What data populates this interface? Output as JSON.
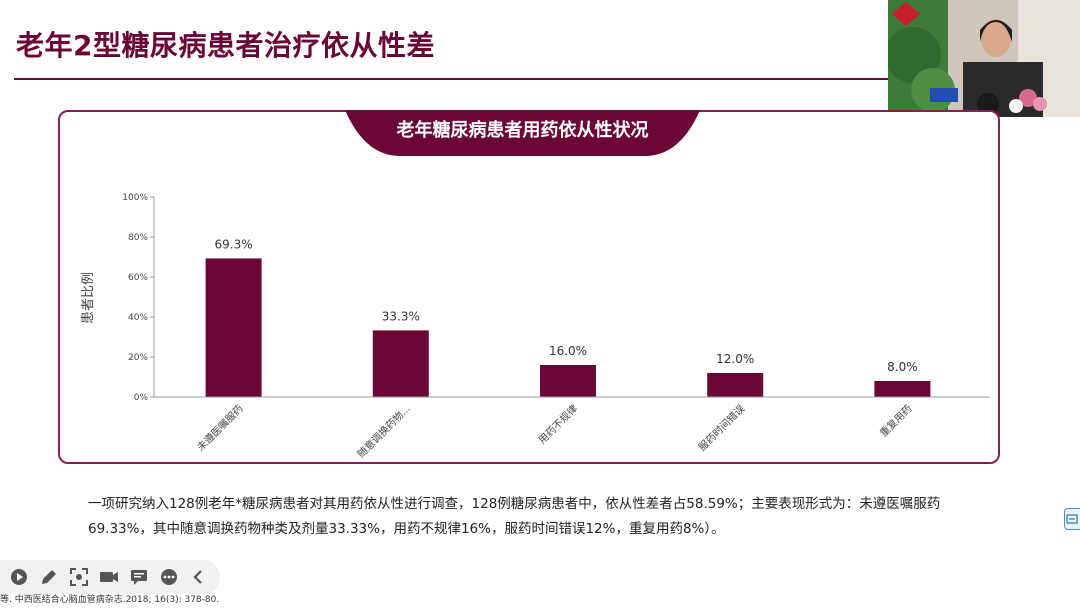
{
  "slide": {
    "title": "老年2型糖尿病患者治疗依从性差",
    "chart_banner": "老年糖尿病患者用药依从性状况",
    "description": "一项研究纳入128例老年*糖尿病患者对其用药依从性进行调查，128例糖尿病患者中，依从性差者占58.59%；主要表现形式为：未遵医嘱服药69.33%，其中随意调换药物种类及剂量33.33%，用药不规律16%，服药时间错误12%，重复用药8%）。",
    "citation": "等. 中西医结合心脑血管病杂志.2018; 16(3): 378-80."
  },
  "colors": {
    "accent": "#6b0637",
    "bar": "#6b0637",
    "panel_border": "#8a1e4f"
  },
  "chart_data": {
    "type": "bar",
    "categories": [
      "未遵医嘱服药",
      "随意调换药物...",
      "用药不规律",
      "服药时间错误",
      "重复用药"
    ],
    "values": [
      69.3,
      33.3,
      16.0,
      12.0,
      8.0
    ],
    "data_labels": [
      "69.3%",
      "33.3%",
      "16.0%",
      "12.0%",
      "8.0%"
    ],
    "ylabel": "患者比例",
    "ylim": [
      0,
      100
    ],
    "yticks": [
      0,
      20,
      40,
      60,
      80,
      100
    ],
    "ytick_labels": [
      "0%",
      "20%",
      "40%",
      "60%",
      "80%",
      "100%"
    ],
    "grid": false,
    "legend": "none"
  },
  "toolbar": {
    "icons": [
      "play-icon",
      "pen-icon",
      "screenshot-icon",
      "camera-icon",
      "chat-icon",
      "more-icon",
      "collapse-icon"
    ]
  }
}
